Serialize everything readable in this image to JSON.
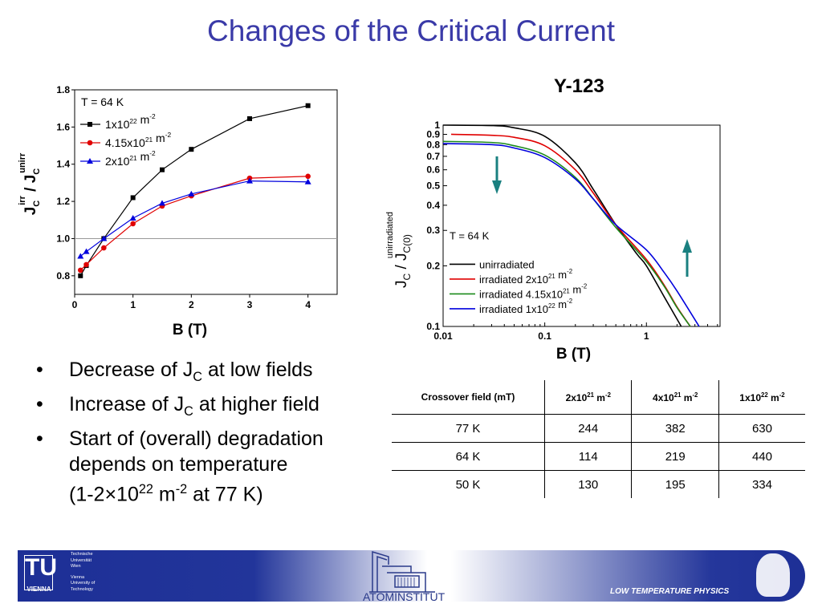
{
  "title": "Changes of the Critical Current",
  "subtitle": "Y-123",
  "bullets": [
    {
      "pre": "Decrease of J",
      "sub": "C",
      "post": " at low fields"
    },
    {
      "pre": "Increase of J",
      "sub": "C",
      "post": " at higher field"
    },
    {
      "pre": "Start of (overall) degradation",
      "sub": "",
      "post": ""
    }
  ],
  "bullet_cont": [
    "depends on temperature",
    "(1-2×10",
    "22",
    " m",
    "-2",
    " at 77 K)"
  ],
  "table": {
    "headers": [
      {
        "base": "Crossover field (mT)",
        "sup1": "",
        "mid": "",
        "sup2": ""
      },
      {
        "base": "2x10",
        "sup1": "21",
        "mid": " m",
        "sup2": "-2"
      },
      {
        "base": "4x10",
        "sup1": "21",
        "mid": " m",
        "sup2": "-2"
      },
      {
        "base": "1x10",
        "sup1": "22",
        "mid": " m",
        "sup2": "-2"
      }
    ],
    "rows": [
      [
        "77 K",
        "244",
        "382",
        "630"
      ],
      [
        "64 K",
        "114",
        "219",
        "440"
      ],
      [
        "50 K",
        "130",
        "195",
        "334"
      ]
    ]
  },
  "footer": {
    "left_logo": "TU VIENNA",
    "left_text": [
      "Technische",
      "Universität",
      "Wien",
      "Vienna",
      "University of",
      "Technology"
    ],
    "center_logo": "ATOMINSTITUT",
    "right_text": "LOW TEMPERATURE PHYSICS"
  },
  "chart_data": [
    {
      "type": "line",
      "xlabel": "B (T)",
      "ylabel": "Jc irr / Jc unirr",
      "xlim": [
        0,
        4.5
      ],
      "ylim": [
        0.7,
        1.8
      ],
      "xticks": [
        0,
        1,
        2,
        3,
        4
      ],
      "yticks": [
        0.8,
        1.0,
        1.2,
        1.4,
        1.6,
        1.8
      ],
      "reference_line": 1.0,
      "annotation": "T = 64 K",
      "legend_position": "top-left",
      "series": [
        {
          "name": "1x10^22 m^-2",
          "color": "#000000",
          "marker": "square",
          "x": [
            0.1,
            0.2,
            0.5,
            1,
            1.5,
            2,
            3,
            4
          ],
          "y": [
            0.8,
            0.855,
            1.0,
            1.22,
            1.37,
            1.48,
            1.645,
            1.715
          ]
        },
        {
          "name": "4.15x10^21 m^-2",
          "color": "#e00000",
          "marker": "circle",
          "x": [
            0.1,
            0.2,
            0.5,
            1,
            1.5,
            2,
            3,
            4
          ],
          "y": [
            0.83,
            0.86,
            0.95,
            1.08,
            1.175,
            1.23,
            1.325,
            1.335
          ]
        },
        {
          "name": "2x10^21 m^-2",
          "color": "#0000dd",
          "marker": "triangle",
          "x": [
            0.1,
            0.2,
            0.5,
            1,
            1.5,
            2,
            3,
            4
          ],
          "y": [
            0.905,
            0.93,
            1.0,
            1.11,
            1.19,
            1.24,
            1.31,
            1.305
          ]
        }
      ]
    },
    {
      "type": "line",
      "xscale": "log",
      "yscale": "log",
      "xlabel": "B (T)",
      "ylabel": "Jc / Jc(0) unirradiated",
      "xlim": [
        0.01,
        5.3
      ],
      "ylim": [
        0.1,
        1
      ],
      "xticks": [
        0.01,
        0.1,
        1
      ],
      "yticks": [
        0.1,
        0.2,
        0.3,
        0.4,
        0.5,
        0.6,
        0.7,
        0.8,
        0.9,
        1
      ],
      "annotation": "T = 64 K",
      "legend_position": "bottom-left",
      "arrow_color": "#1a8080",
      "series": [
        {
          "name": "unirradiated",
          "color": "#000000",
          "x": [
            0.01,
            0.03,
            0.05,
            0.1,
            0.2,
            0.3,
            0.5,
            0.8,
            1,
            1.5,
            2.2
          ],
          "y": [
            1.0,
            0.995,
            0.97,
            0.88,
            0.65,
            0.48,
            0.32,
            0.23,
            0.2,
            0.14,
            0.1
          ]
        },
        {
          "name": "irradiated 2x10^21 m^-2",
          "color": "#e00000",
          "x": [
            0.012,
            0.03,
            0.05,
            0.1,
            0.2,
            0.3,
            0.5,
            1,
            1.5,
            2,
            2.7
          ],
          "y": [
            0.9,
            0.89,
            0.87,
            0.79,
            0.6,
            0.46,
            0.32,
            0.215,
            0.16,
            0.125,
            0.1
          ]
        },
        {
          "name": "irradiated 4.15x10^21 m^-2",
          "color": "#1a8a1a",
          "x": [
            0.01,
            0.03,
            0.05,
            0.1,
            0.2,
            0.3,
            0.5,
            1,
            1.5,
            2,
            2.7
          ],
          "y": [
            0.83,
            0.82,
            0.79,
            0.71,
            0.55,
            0.43,
            0.31,
            0.21,
            0.158,
            0.124,
            0.1
          ]
        },
        {
          "name": "irradiated 1x10^22 m^-2",
          "color": "#0000dd",
          "x": [
            0.01,
            0.03,
            0.05,
            0.1,
            0.2,
            0.3,
            0.5,
            1,
            1.5,
            2,
            3.3
          ],
          "y": [
            0.81,
            0.8,
            0.77,
            0.69,
            0.54,
            0.43,
            0.32,
            0.24,
            0.185,
            0.15,
            0.1
          ]
        }
      ]
    }
  ]
}
